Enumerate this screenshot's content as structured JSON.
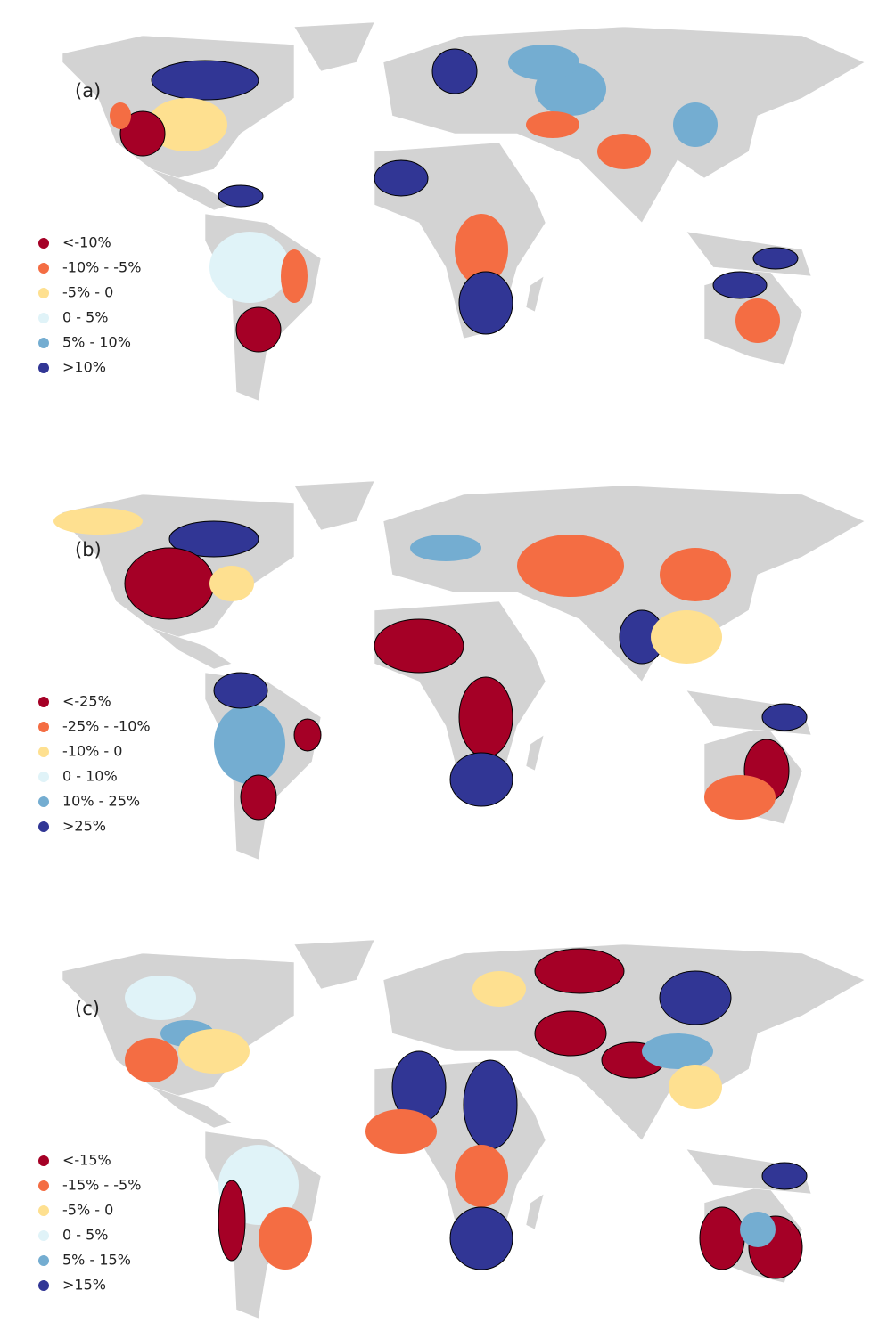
{
  "panels": [
    {
      "label": "(a)",
      "legend": [
        {
          "label": "<-10%",
          "color": "#a50026"
        },
        {
          "label": "-10% - -5%",
          "color": "#f46d43"
        },
        {
          "label": "-5% - 0",
          "color": "#fee090"
        },
        {
          "label": "0 - 5%",
          "color": "#e0f3f8"
        },
        {
          "label": "5% - 10%",
          "color": "#74add1"
        },
        {
          "label": ">10%",
          "color": "#313695"
        }
      ]
    },
    {
      "label": "(b)",
      "legend": [
        {
          "label": "<-25%",
          "color": "#a50026"
        },
        {
          "label": "-25% - -10%",
          "color": "#f46d43"
        },
        {
          "label": "-10% - 0",
          "color": "#fee090"
        },
        {
          "label": "0 - 10%",
          "color": "#e0f3f8"
        },
        {
          "label": "10% - 25%",
          "color": "#74add1"
        },
        {
          "label": ">25%",
          "color": "#313695"
        }
      ]
    },
    {
      "label": "(c)",
      "legend": [
        {
          "label": "<-15%",
          "color": "#a50026"
        },
        {
          "label": "-15% - -5%",
          "color": "#f46d43"
        },
        {
          "label": "-5% - 0",
          "color": "#fee090"
        },
        {
          "label": "0 - 5%",
          "color": "#e0f3f8"
        },
        {
          "label": "5% - 15%",
          "color": "#74add1"
        },
        {
          "label": ">15%",
          "color": "#313695"
        }
      ]
    }
  ]
}
